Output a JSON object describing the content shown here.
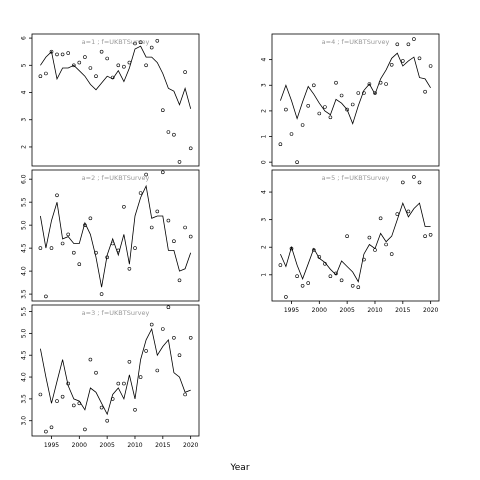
{
  "chart_data": {
    "type": "scatter",
    "xlabel": "Year",
    "panels": [
      {
        "label": "a=1 ; f=UKBTSurvey",
        "xlim": [
          1991.5,
          2021.5
        ],
        "ylim": [
          1.3,
          6.15
        ],
        "xticks": [],
        "yticks": [
          2,
          3,
          4,
          5,
          6
        ],
        "observed": [
          [
            1993,
            4.6
          ],
          [
            1994,
            4.7
          ],
          [
            1995,
            5.5
          ],
          [
            1996,
            5.4
          ],
          [
            1997,
            5.4
          ],
          [
            1998,
            5.45
          ],
          [
            1999,
            5.0
          ],
          [
            2000,
            5.1
          ],
          [
            2001,
            5.3
          ],
          [
            2002,
            4.9
          ],
          [
            2003,
            4.6
          ],
          [
            2004,
            5.5
          ],
          [
            2005,
            5.25
          ],
          [
            2006,
            4.55
          ],
          [
            2007,
            5.0
          ],
          [
            2008,
            4.95
          ],
          [
            2009,
            5.1
          ],
          [
            2010,
            5.8
          ],
          [
            2011,
            5.85
          ],
          [
            2012,
            5.0
          ],
          [
            2013,
            5.65
          ],
          [
            2014,
            5.9
          ],
          [
            2015,
            3.35
          ],
          [
            2016,
            2.55
          ],
          [
            2017,
            2.45
          ],
          [
            2018,
            1.45
          ],
          [
            2019,
            4.75
          ],
          [
            2020,
            1.95
          ]
        ],
        "fitted": [
          [
            1993,
            5.0
          ],
          [
            1994,
            5.3
          ],
          [
            1995,
            5.5
          ],
          [
            1996,
            4.5
          ],
          [
            1997,
            4.9
          ],
          [
            1998,
            4.9
          ],
          [
            1999,
            5.0
          ],
          [
            2000,
            4.8
          ],
          [
            2001,
            4.6
          ],
          [
            2002,
            4.3
          ],
          [
            2003,
            4.1
          ],
          [
            2004,
            4.35
          ],
          [
            2005,
            4.6
          ],
          [
            2006,
            4.5
          ],
          [
            2007,
            4.8
          ],
          [
            2008,
            4.4
          ],
          [
            2009,
            4.9
          ],
          [
            2010,
            5.6
          ],
          [
            2011,
            5.7
          ],
          [
            2012,
            5.3
          ],
          [
            2013,
            5.3
          ],
          [
            2014,
            5.1
          ],
          [
            2015,
            4.7
          ],
          [
            2016,
            4.15
          ],
          [
            2017,
            4.05
          ],
          [
            2018,
            3.55
          ],
          [
            2019,
            4.15
          ],
          [
            2020,
            3.4
          ]
        ]
      },
      {
        "label": "a=2 ; f=UKBTSurvey",
        "xlim": [
          1991.5,
          2021.5
        ],
        "ylim": [
          3.35,
          6.2
        ],
        "xticks": [],
        "yticks": [
          3.5,
          4.0,
          4.5,
          5.0,
          5.5,
          6.0
        ],
        "observed": [
          [
            1993,
            4.5
          ],
          [
            1994,
            3.45
          ],
          [
            1995,
            4.5
          ],
          [
            1996,
            5.65
          ],
          [
            1997,
            4.6
          ],
          [
            1998,
            4.8
          ],
          [
            1999,
            4.4
          ],
          [
            2000,
            4.15
          ],
          [
            2001,
            5.0
          ],
          [
            2002,
            5.15
          ],
          [
            2003,
            4.4
          ],
          [
            2004,
            3.5
          ],
          [
            2005,
            4.3
          ],
          [
            2006,
            4.6
          ],
          [
            2007,
            4.45
          ],
          [
            2008,
            5.4
          ],
          [
            2009,
            4.05
          ],
          [
            2010,
            4.5
          ],
          [
            2011,
            5.7
          ],
          [
            2012,
            6.1
          ],
          [
            2013,
            4.95
          ],
          [
            2014,
            5.3
          ],
          [
            2015,
            6.15
          ],
          [
            2016,
            5.1
          ],
          [
            2017,
            4.65
          ],
          [
            2018,
            3.8
          ],
          [
            2019,
            4.95
          ],
          [
            2020,
            4.75
          ]
        ],
        "fitted": [
          [
            1993,
            5.2
          ],
          [
            1994,
            4.5
          ],
          [
            1995,
            5.1
          ],
          [
            1996,
            5.5
          ],
          [
            1997,
            4.7
          ],
          [
            1998,
            4.75
          ],
          [
            1999,
            4.6
          ],
          [
            2000,
            4.6
          ],
          [
            2001,
            5.05
          ],
          [
            2002,
            4.8
          ],
          [
            2003,
            4.3
          ],
          [
            2004,
            3.65
          ],
          [
            2005,
            4.35
          ],
          [
            2006,
            4.7
          ],
          [
            2007,
            4.35
          ],
          [
            2008,
            4.8
          ],
          [
            2009,
            4.15
          ],
          [
            2010,
            5.2
          ],
          [
            2011,
            5.6
          ],
          [
            2012,
            5.85
          ],
          [
            2013,
            5.15
          ],
          [
            2014,
            5.2
          ],
          [
            2015,
            5.2
          ],
          [
            2016,
            4.45
          ],
          [
            2017,
            4.45
          ],
          [
            2018,
            4.0
          ],
          [
            2019,
            4.05
          ],
          [
            2020,
            4.4
          ]
        ]
      },
      {
        "label": "a=3 ; f=UKBTSurvey",
        "xlim": [
          1991.5,
          2021.5
        ],
        "ylim": [
          2.65,
          5.65
        ],
        "xticks": [
          1995,
          2000,
          2005,
          2010,
          2015,
          2020
        ],
        "yticks": [
          3.0,
          3.5,
          4.0,
          4.5,
          5.0,
          5.5
        ],
        "observed": [
          [
            1993,
            3.6
          ],
          [
            1994,
            2.75
          ],
          [
            1995,
            2.85
          ],
          [
            1996,
            3.45
          ],
          [
            1997,
            3.55
          ],
          [
            1998,
            3.85
          ],
          [
            1999,
            3.35
          ],
          [
            2000,
            3.4
          ],
          [
            2001,
            2.8
          ],
          [
            2002,
            4.4
          ],
          [
            2003,
            4.1
          ],
          [
            2004,
            3.3
          ],
          [
            2005,
            3.0
          ],
          [
            2006,
            3.5
          ],
          [
            2007,
            3.85
          ],
          [
            2008,
            3.85
          ],
          [
            2009,
            4.35
          ],
          [
            2010,
            3.25
          ],
          [
            2011,
            4.0
          ],
          [
            2012,
            4.6
          ],
          [
            2013,
            5.2
          ],
          [
            2014,
            4.15
          ],
          [
            2015,
            5.1
          ],
          [
            2016,
            5.6
          ],
          [
            2017,
            4.9
          ],
          [
            2018,
            4.5
          ],
          [
            2019,
            3.6
          ],
          [
            2020,
            4.9
          ]
        ],
        "fitted": [
          [
            1993,
            4.65
          ],
          [
            1994,
            4.0
          ],
          [
            1995,
            3.4
          ],
          [
            1996,
            3.9
          ],
          [
            1997,
            4.4
          ],
          [
            1998,
            3.8
          ],
          [
            1999,
            3.5
          ],
          [
            2000,
            3.45
          ],
          [
            2001,
            3.25
          ],
          [
            2002,
            3.75
          ],
          [
            2003,
            3.65
          ],
          [
            2004,
            3.4
          ],
          [
            2005,
            3.15
          ],
          [
            2006,
            3.6
          ],
          [
            2007,
            3.75
          ],
          [
            2008,
            3.5
          ],
          [
            2009,
            4.05
          ],
          [
            2010,
            3.5
          ],
          [
            2011,
            4.4
          ],
          [
            2012,
            4.85
          ],
          [
            2013,
            5.1
          ],
          [
            2014,
            4.5
          ],
          [
            2015,
            4.7
          ],
          [
            2016,
            4.85
          ],
          [
            2017,
            4.1
          ],
          [
            2018,
            4.0
          ],
          [
            2019,
            3.65
          ],
          [
            2020,
            3.7
          ]
        ]
      },
      {
        "label": "a=4 ; f=UKBTSurvey",
        "xlim": [
          1991.5,
          2021.5
        ],
        "ylim": [
          -0.15,
          5.0
        ],
        "xticks": [],
        "yticks": [
          0,
          1,
          2,
          3,
          4
        ],
        "observed": [
          [
            1993,
            0.7
          ],
          [
            1994,
            2.05
          ],
          [
            1995,
            1.1
          ],
          [
            1996,
            0.0
          ],
          [
            1997,
            1.45
          ],
          [
            1998,
            2.2
          ],
          [
            1999,
            3.0
          ],
          [
            2000,
            1.9
          ],
          [
            2001,
            2.15
          ],
          [
            2002,
            1.75
          ],
          [
            2003,
            3.1
          ],
          [
            2004,
            2.6
          ],
          [
            2005,
            2.05
          ],
          [
            2006,
            2.25
          ],
          [
            2007,
            2.7
          ],
          [
            2008,
            2.7
          ],
          [
            2009,
            3.05
          ],
          [
            2010,
            2.7
          ],
          [
            2011,
            3.1
          ],
          [
            2012,
            3.05
          ],
          [
            2013,
            3.8
          ],
          [
            2014,
            4.6
          ],
          [
            2015,
            3.95
          ],
          [
            2016,
            4.6
          ],
          [
            2017,
            4.8
          ],
          [
            2018,
            4.05
          ],
          [
            2019,
            2.75
          ],
          [
            2020,
            3.75
          ]
        ],
        "fitted": [
          [
            1993,
            2.4
          ],
          [
            1994,
            3.0
          ],
          [
            1995,
            2.4
          ],
          [
            1996,
            1.7
          ],
          [
            1997,
            2.35
          ],
          [
            1998,
            2.95
          ],
          [
            1999,
            2.65
          ],
          [
            2000,
            2.3
          ],
          [
            2001,
            2.0
          ],
          [
            2002,
            1.85
          ],
          [
            2003,
            2.45
          ],
          [
            2004,
            2.3
          ],
          [
            2005,
            2.05
          ],
          [
            2006,
            1.5
          ],
          [
            2007,
            2.2
          ],
          [
            2008,
            2.8
          ],
          [
            2009,
            3.05
          ],
          [
            2010,
            2.65
          ],
          [
            2011,
            3.25
          ],
          [
            2012,
            3.6
          ],
          [
            2013,
            4.05
          ],
          [
            2014,
            4.25
          ],
          [
            2015,
            3.75
          ],
          [
            2016,
            3.95
          ],
          [
            2017,
            4.1
          ],
          [
            2018,
            3.3
          ],
          [
            2019,
            3.25
          ],
          [
            2020,
            2.9
          ]
        ]
      },
      {
        "label": "a=5 ; f=UKBTSurvey",
        "xlim": [
          1991.5,
          2021.5
        ],
        "ylim": [
          0.05,
          4.8
        ],
        "xticks": [
          1995,
          2000,
          2005,
          2010,
          2015,
          2020
        ],
        "yticks": [
          1,
          2,
          3,
          4
        ],
        "observed": [
          [
            1993,
            1.35
          ],
          [
            1994,
            0.2
          ],
          [
            1995,
            1.95
          ],
          [
            1996,
            0.95
          ],
          [
            1997,
            0.6
          ],
          [
            1998,
            0.7
          ],
          [
            1999,
            1.9
          ],
          [
            2000,
            1.65
          ],
          [
            2001,
            1.4
          ],
          [
            2002,
            0.95
          ],
          [
            2003,
            1.05
          ],
          [
            2004,
            0.8
          ],
          [
            2005,
            2.4
          ],
          [
            2006,
            0.6
          ],
          [
            2007,
            0.55
          ],
          [
            2008,
            1.55
          ],
          [
            2009,
            2.35
          ],
          [
            2010,
            1.9
          ],
          [
            2011,
            3.05
          ],
          [
            2012,
            2.1
          ],
          [
            2013,
            1.75
          ],
          [
            2014,
            3.2
          ],
          [
            2015,
            4.35
          ],
          [
            2016,
            3.3
          ],
          [
            2017,
            4.55
          ],
          [
            2018,
            4.35
          ],
          [
            2019,
            2.4
          ],
          [
            2020,
            2.45
          ]
        ],
        "fitted": [
          [
            1993,
            1.75
          ],
          [
            1994,
            1.3
          ],
          [
            1995,
            2.0
          ],
          [
            1996,
            1.35
          ],
          [
            1997,
            0.85
          ],
          [
            1998,
            1.4
          ],
          [
            1999,
            1.95
          ],
          [
            2000,
            1.6
          ],
          [
            2001,
            1.45
          ],
          [
            2002,
            1.2
          ],
          [
            2003,
            1.0
          ],
          [
            2004,
            1.5
          ],
          [
            2005,
            1.3
          ],
          [
            2006,
            1.1
          ],
          [
            2007,
            0.75
          ],
          [
            2008,
            1.75
          ],
          [
            2009,
            2.1
          ],
          [
            2010,
            1.95
          ],
          [
            2011,
            2.5
          ],
          [
            2012,
            2.2
          ],
          [
            2013,
            2.4
          ],
          [
            2014,
            3.0
          ],
          [
            2015,
            3.6
          ],
          [
            2016,
            3.1
          ],
          [
            2017,
            3.4
          ],
          [
            2018,
            3.6
          ],
          [
            2019,
            2.75
          ],
          [
            2020,
            2.75
          ]
        ]
      }
    ]
  }
}
